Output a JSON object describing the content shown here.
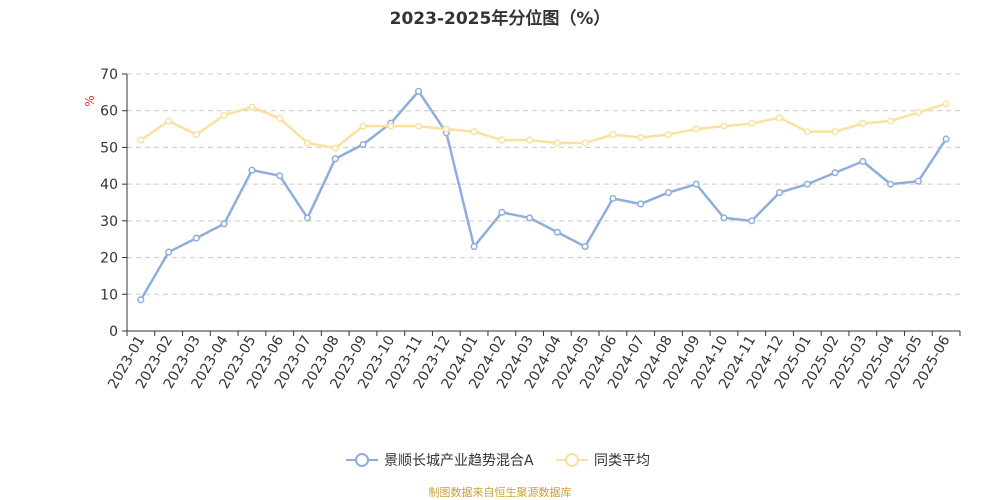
{
  "chart_data": {
    "type": "line",
    "title": "2023-2025年分位图（%）",
    "ylabel": "%",
    "xlabel": "",
    "ylim": [
      0,
      70
    ],
    "yticks": [
      0,
      10,
      20,
      30,
      40,
      50,
      60,
      70
    ],
    "grid": true,
    "legend_position": "bottom",
    "categories": [
      "2023-01",
      "2023-02",
      "2023-03",
      "2023-04",
      "2023-05",
      "2023-06",
      "2023-07",
      "2023-08",
      "2023-09",
      "2023-10",
      "2023-11",
      "2023-12",
      "2024-01",
      "2024-02",
      "2024-03",
      "2024-04",
      "2024-05",
      "2024-06",
      "2024-07",
      "2024-08",
      "2024-09",
      "2024-10",
      "2024-11",
      "2024-12",
      "2025-01",
      "2025-02",
      "2025-03",
      "2025-04",
      "2025-05",
      "2025-06"
    ],
    "series": [
      {
        "name": "景顺长城产业趋势混合A",
        "color": "#8eaedb",
        "values": [
          8.5,
          21.5,
          25.3,
          29.2,
          43.8,
          42.3,
          30.8,
          46.9,
          50.8,
          56.6,
          65.3,
          54.0,
          23.0,
          32.3,
          30.8,
          26.9,
          23.0,
          36.1,
          34.6,
          37.7,
          40.0,
          30.8,
          30.0,
          37.7,
          40.0,
          43.1,
          46.2,
          40.0,
          40.8,
          52.3
        ]
      },
      {
        "name": "同类平均",
        "color": "#fbe0a0",
        "values": [
          52.0,
          57.2,
          53.5,
          58.8,
          61.0,
          57.9,
          51.2,
          49.8,
          55.8,
          55.8,
          55.8,
          55.0,
          54.3,
          52.0,
          52.0,
          51.2,
          51.2,
          53.5,
          52.7,
          53.5,
          55.0,
          55.8,
          56.5,
          58.1,
          54.3,
          54.3,
          56.5,
          57.2,
          59.5,
          61.9
        ]
      }
    ]
  },
  "source_note": "制图数据来自恒生聚源数据库",
  "source_color": "#c8a040",
  "ylabel_color": "#e03030"
}
